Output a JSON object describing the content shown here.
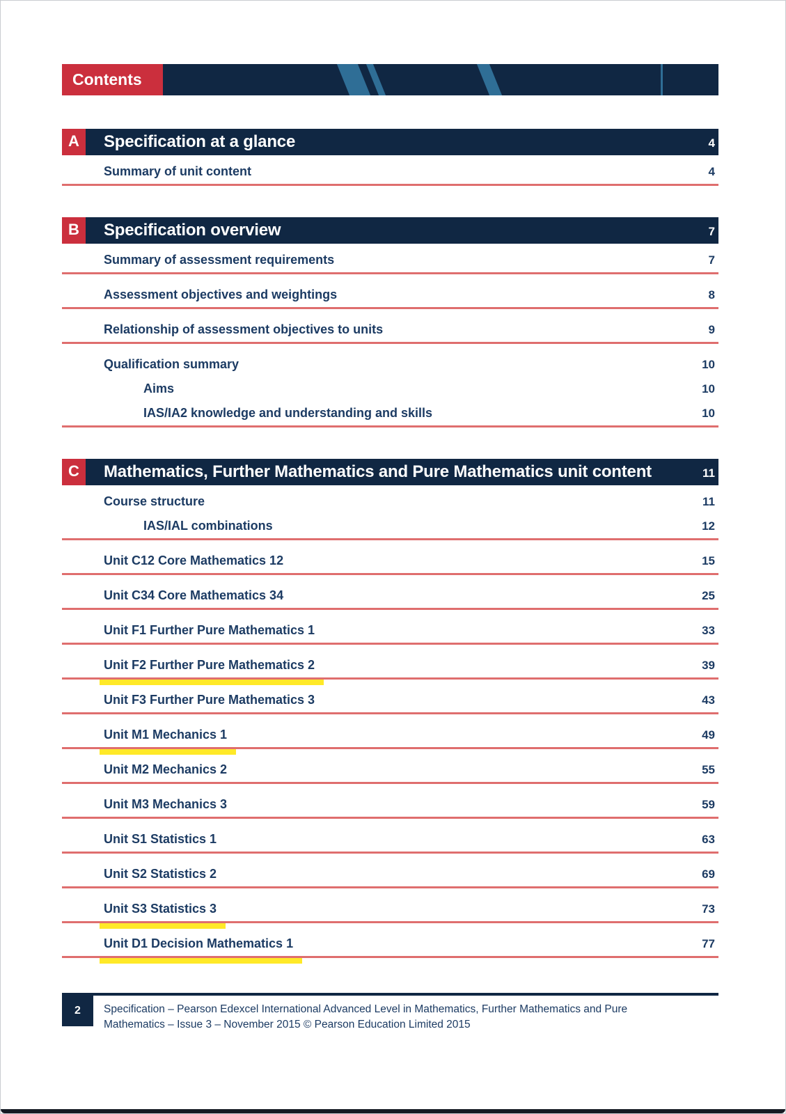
{
  "banner": {
    "label": "Contents"
  },
  "sections": [
    {
      "letter": "A",
      "title": "Specification at a glance",
      "page": "4",
      "entries": [
        {
          "label": "Summary of unit content",
          "page": "4",
          "indent": 0,
          "underline": true,
          "highlight": false
        }
      ]
    },
    {
      "letter": "B",
      "title": "Specification overview",
      "page": "7",
      "entries": [
        {
          "label": "Summary of assessment requirements",
          "page": "7",
          "indent": 0,
          "underline": true,
          "highlight": false
        },
        {
          "label": "Assessment objectives and weightings",
          "page": "8",
          "indent": 0,
          "underline": true,
          "highlight": false
        },
        {
          "label": "Relationship of assessment objectives to units",
          "page": "9",
          "indent": 0,
          "underline": true,
          "highlight": false
        },
        {
          "label": "Qualification summary",
          "page": "10",
          "indent": 0,
          "underline": false,
          "highlight": false
        },
        {
          "label": "Aims",
          "page": "10",
          "indent": 1,
          "underline": false,
          "highlight": false
        },
        {
          "label": "IAS/IA2 knowledge and understanding and skills",
          "page": "10",
          "indent": 1,
          "underline": true,
          "highlight": false
        }
      ]
    },
    {
      "letter": "C",
      "title": "Mathematics, Further Mathematics and Pure Mathematics unit content",
      "page": "11",
      "entries": [
        {
          "label": "Course structure",
          "page": "11",
          "indent": 0,
          "underline": false,
          "highlight": false
        },
        {
          "label": "IAS/IAL combinations",
          "page": "12",
          "indent": 1,
          "underline": true,
          "highlight": false
        },
        {
          "label": "Unit C12 Core Mathematics 12",
          "page": "15",
          "indent": 0,
          "underline": true,
          "highlight": false
        },
        {
          "label": "Unit C34 Core Mathematics 34",
          "page": "25",
          "indent": 0,
          "underline": true,
          "highlight": false
        },
        {
          "label": "Unit F1 Further Pure Mathematics 1",
          "page": "33",
          "indent": 0,
          "underline": true,
          "highlight": false
        },
        {
          "label": "Unit F2 Further Pure Mathematics 2",
          "page": "39",
          "indent": 0,
          "underline": true,
          "highlight": true
        },
        {
          "label": "Unit F3 Further Pure Mathematics 3",
          "page": "43",
          "indent": 0,
          "underline": true,
          "highlight": false
        },
        {
          "label": "Unit M1 Mechanics 1",
          "page": "49",
          "indent": 0,
          "underline": true,
          "highlight": true
        },
        {
          "label": "Unit M2 Mechanics 2",
          "page": "55",
          "indent": 0,
          "underline": true,
          "highlight": false
        },
        {
          "label": "Unit M3 Mechanics 3",
          "page": "59",
          "indent": 0,
          "underline": true,
          "highlight": false
        },
        {
          "label": "Unit S1 Statistics 1",
          "page": "63",
          "indent": 0,
          "underline": true,
          "highlight": false
        },
        {
          "label": "Unit S2 Statistics 2",
          "page": "69",
          "indent": 0,
          "underline": true,
          "highlight": false
        },
        {
          "label": "Unit S3 Statistics 3",
          "page": "73",
          "indent": 0,
          "underline": true,
          "highlight": true
        },
        {
          "label": "Unit D1 Decision Mathematics 1",
          "page": "77",
          "indent": 0,
          "underline": true,
          "highlight": true
        }
      ]
    }
  ],
  "footer": {
    "page_number": "2",
    "text": "Specification – Pearson Edexcel International Advanced Level in Mathematics, Further Mathematics and Pure Mathematics – Issue 3 – November 2015 © Pearson Education Limited 2015"
  },
  "colors": {
    "navy": "#102743",
    "red": "#cb2f3d",
    "underline_red": "#df6e6e",
    "stripe_blue": "#2f6e96",
    "highlight_yellow": "#ffe928",
    "text_navy": "#1c3b63"
  }
}
